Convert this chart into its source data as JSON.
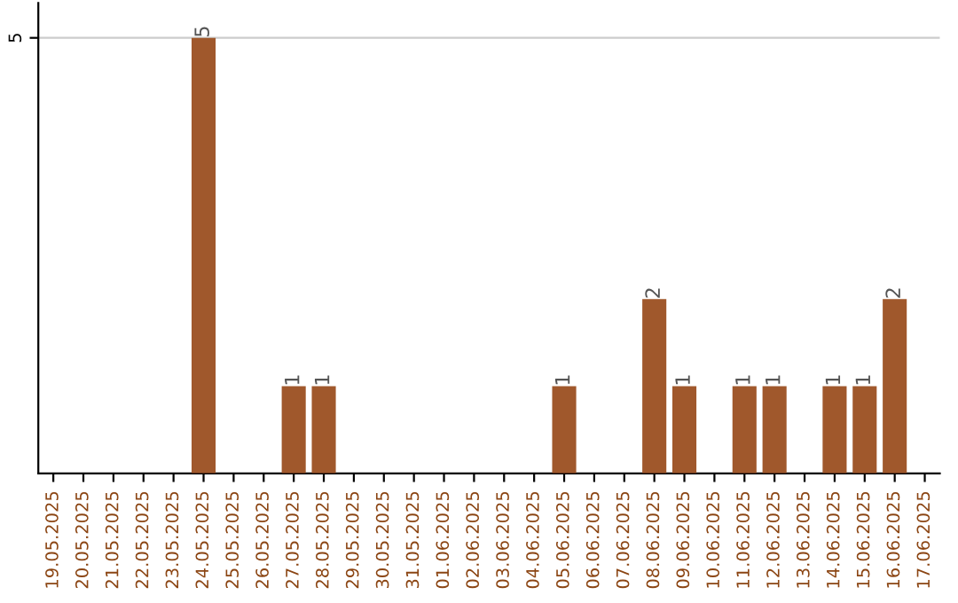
{
  "chart_data": {
    "type": "bar",
    "categories": [
      "19.05.2025",
      "20.05.2025",
      "21.05.2025",
      "22.05.2025",
      "23.05.2025",
      "24.05.2025",
      "25.05.2025",
      "26.05.2025",
      "27.05.2025",
      "28.05.2025",
      "29.05.2025",
      "30.05.2025",
      "31.05.2025",
      "01.06.2025",
      "02.06.2025",
      "03.06.2025",
      "04.06.2025",
      "05.06.2025",
      "06.06.2025",
      "07.06.2025",
      "08.06.2025",
      "09.06.2025",
      "10.06.2025",
      "11.06.2025",
      "12.06.2025",
      "13.06.2025",
      "14.06.2025",
      "15.06.2025",
      "16.06.2025",
      "17.06.2025"
    ],
    "values": [
      0,
      0,
      0,
      0,
      0,
      5,
      0,
      0,
      1,
      1,
      0,
      0,
      0,
      0,
      0,
      0,
      0,
      1,
      0,
      0,
      2,
      1,
      0,
      1,
      1,
      0,
      1,
      1,
      2,
      0
    ],
    "value_labels": [
      null,
      null,
      null,
      null,
      null,
      "5",
      null,
      null,
      "1",
      "1",
      null,
      null,
      null,
      null,
      null,
      null,
      null,
      "1",
      null,
      null,
      "2",
      "1",
      null,
      "1",
      "1",
      null,
      "1",
      "1",
      "2",
      null
    ],
    "color": "#a0582c",
    "ylim": [
      0,
      5.4
    ],
    "yticks": [
      5
    ],
    "grid": "y"
  }
}
